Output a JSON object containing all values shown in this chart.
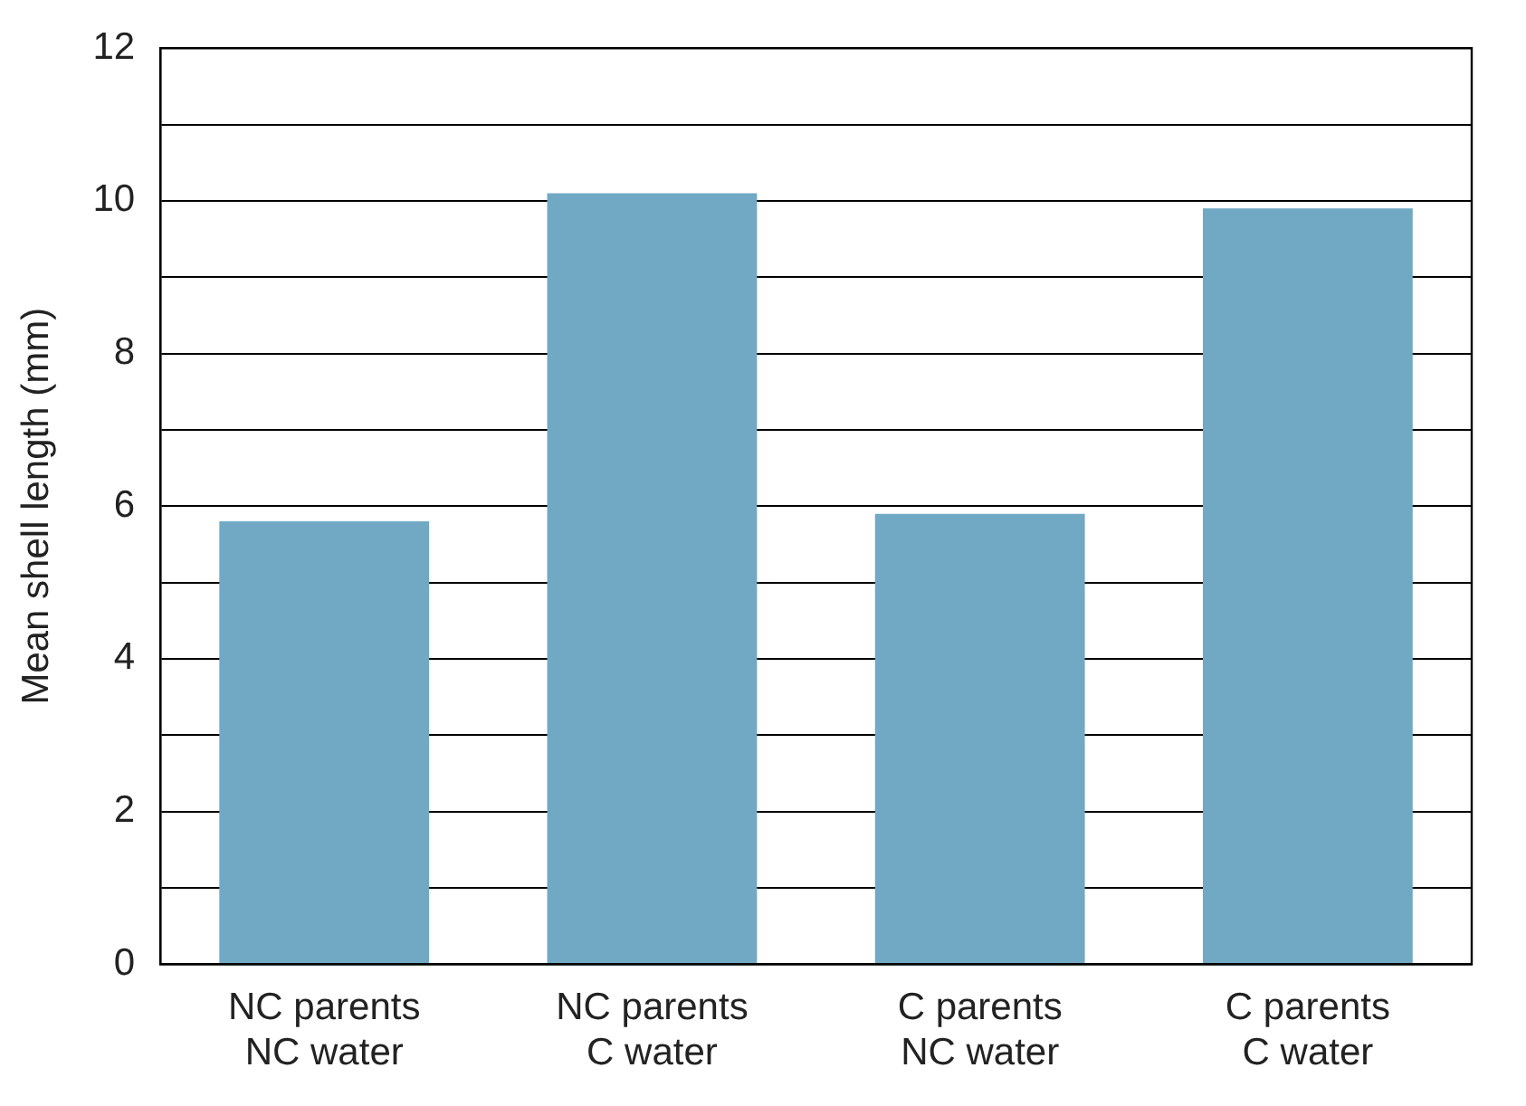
{
  "chart_data": {
    "type": "bar",
    "ylabel": "Mean shell length (mm)",
    "categories": [
      "NC parents\nNC water",
      "NC parents\nC water",
      "C parents\nNC water",
      "C parents\nC water"
    ],
    "values": [
      5.8,
      10.1,
      5.9,
      9.9
    ],
    "color": "#71a9c4",
    "ylim": [
      0,
      12
    ],
    "yticks": [
      0,
      {
        "value": 1,
        "label": null
      },
      2,
      {
        "value": 3,
        "label": null
      },
      4,
      {
        "value": 5,
        "label": null
      },
      6,
      {
        "value": 7,
        "label": null
      },
      8,
      {
        "value": 9,
        "label": null
      },
      10,
      {
        "value": 11,
        "label": null
      },
      12
    ],
    "grid": "y",
    "legend": false
  }
}
